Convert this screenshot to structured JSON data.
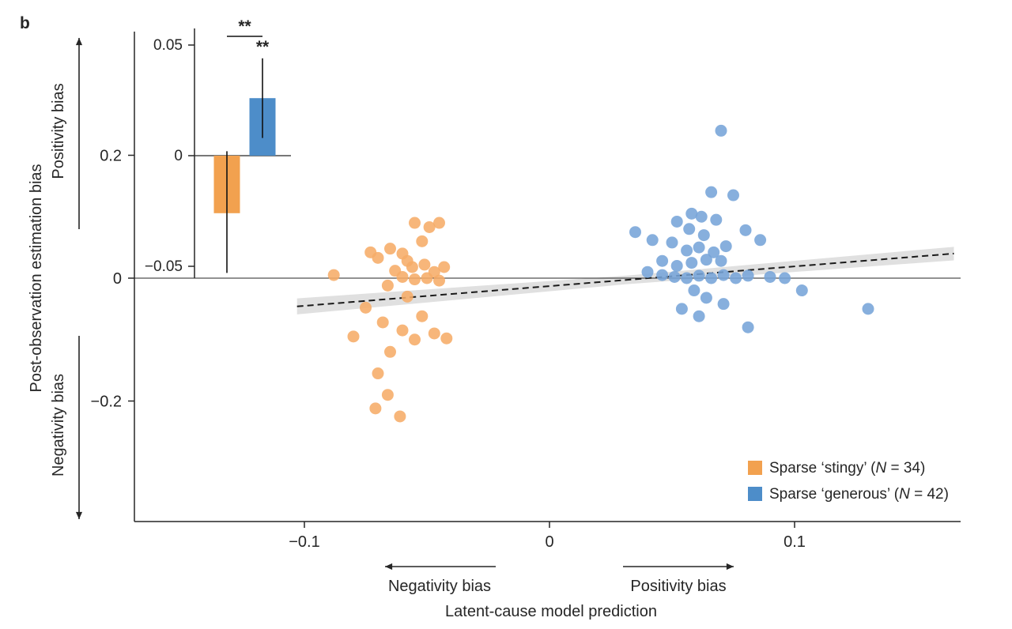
{
  "panel_label": "b",
  "colors": {
    "orange": "#F2A14F",
    "orange_point": "#F6AC68",
    "blue": "#4D8DC9",
    "blue_point": "#76A4D8",
    "axis": "#262626",
    "band": "#DBDBDB"
  },
  "axes": {
    "x_label": "Latent-cause model prediction",
    "y_label": "Post-observation estimation bias",
    "y_pos_label": "Positivity bias",
    "y_neg_label": "Negativity bias",
    "x_neg_label": "Negativity bias",
    "x_pos_label": "Positivity bias"
  },
  "chart_data": {
    "type": "scatter",
    "xlim": [
      -0.169,
      0.168
    ],
    "ylim": [
      -0.4,
      0.4
    ],
    "grid": false,
    "zero_line": true,
    "xticks": [
      {
        "v": -0.1,
        "label": "−0.1"
      },
      {
        "v": 0,
        "label": "0"
      },
      {
        "v": 0.1,
        "label": "0.1"
      }
    ],
    "yticks": [
      {
        "v": 0.2,
        "label": "0.2"
      },
      {
        "v": 0,
        "label": "0"
      },
      {
        "v": -0.2,
        "label": "−0.2"
      }
    ],
    "regression": {
      "style": "dashed",
      "x": [
        -0.103,
        0.165
      ],
      "y": [
        -0.046,
        0.04
      ]
    },
    "band": [
      {
        "x": -0.103,
        "lo": -0.059,
        "hi": -0.033
      },
      {
        "x": 0.031,
        "lo": -0.01,
        "hi": 0.004
      },
      {
        "x": 0.165,
        "lo": 0.029,
        "hi": 0.051
      }
    ],
    "series": [
      {
        "key": "stingy",
        "name": "Sparse ‘stingy’",
        "n": 34,
        "color_key": "orange",
        "points": [
          [
            -0.088,
            0.005
          ],
          [
            -0.073,
            0.042
          ],
          [
            -0.07,
            0.033
          ],
          [
            -0.065,
            0.048
          ],
          [
            -0.06,
            0.04
          ],
          [
            -0.055,
            0.09
          ],
          [
            -0.049,
            0.083
          ],
          [
            -0.045,
            0.09
          ],
          [
            -0.052,
            0.06
          ],
          [
            -0.058,
            0.028
          ],
          [
            -0.063,
            0.012
          ],
          [
            -0.056,
            0.018
          ],
          [
            -0.051,
            0.022
          ],
          [
            -0.047,
            0.01
          ],
          [
            -0.043,
            0.018
          ],
          [
            -0.06,
            0.002
          ],
          [
            -0.055,
            -0.002
          ],
          [
            -0.05,
            0.0
          ],
          [
            -0.045,
            -0.004
          ],
          [
            -0.066,
            -0.012
          ],
          [
            -0.058,
            -0.03
          ],
          [
            -0.075,
            -0.048
          ],
          [
            -0.068,
            -0.072
          ],
          [
            -0.06,
            -0.085
          ],
          [
            -0.052,
            -0.062
          ],
          [
            -0.047,
            -0.09
          ],
          [
            -0.055,
            -0.1
          ],
          [
            -0.08,
            -0.095
          ],
          [
            -0.042,
            -0.098
          ],
          [
            -0.065,
            -0.12
          ],
          [
            -0.07,
            -0.155
          ],
          [
            -0.066,
            -0.19
          ],
          [
            -0.071,
            -0.212
          ],
          [
            -0.061,
            -0.225
          ]
        ]
      },
      {
        "key": "generous",
        "name": "Sparse ‘generous’",
        "n": 42,
        "color_key": "blue",
        "points": [
          [
            0.07,
            0.24
          ],
          [
            0.066,
            0.14
          ],
          [
            0.075,
            0.135
          ],
          [
            0.058,
            0.105
          ],
          [
            0.062,
            0.1
          ],
          [
            0.052,
            0.092
          ],
          [
            0.068,
            0.095
          ],
          [
            0.035,
            0.075
          ],
          [
            0.042,
            0.062
          ],
          [
            0.08,
            0.078
          ],
          [
            0.086,
            0.062
          ],
          [
            0.057,
            0.08
          ],
          [
            0.063,
            0.07
          ],
          [
            0.05,
            0.058
          ],
          [
            0.056,
            0.045
          ],
          [
            0.061,
            0.05
          ],
          [
            0.067,
            0.042
          ],
          [
            0.072,
            0.052
          ],
          [
            0.046,
            0.028
          ],
          [
            0.052,
            0.02
          ],
          [
            0.058,
            0.025
          ],
          [
            0.064,
            0.03
          ],
          [
            0.07,
            0.028
          ],
          [
            0.04,
            0.01
          ],
          [
            0.046,
            0.005
          ],
          [
            0.051,
            0.002
          ],
          [
            0.056,
            0.0
          ],
          [
            0.061,
            0.004
          ],
          [
            0.066,
            0.0
          ],
          [
            0.071,
            0.005
          ],
          [
            0.076,
            0.0
          ],
          [
            0.081,
            0.004
          ],
          [
            0.09,
            0.002
          ],
          [
            0.096,
            0.0
          ],
          [
            0.059,
            -0.02
          ],
          [
            0.064,
            -0.032
          ],
          [
            0.054,
            -0.05
          ],
          [
            0.061,
            -0.062
          ],
          [
            0.071,
            -0.042
          ],
          [
            0.081,
            -0.08
          ],
          [
            0.103,
            -0.02
          ],
          [
            0.13,
            -0.05
          ]
        ]
      }
    ],
    "inset": {
      "type": "bar",
      "ylim": [
        -0.055,
        0.058
      ],
      "yticks": [
        {
          "v": 0.05,
          "label": "0.05"
        },
        {
          "v": 0,
          "label": "0"
        },
        {
          "v": -0.05,
          "label": "−0.05"
        }
      ],
      "bars": [
        {
          "name": "stingy",
          "color_key": "orange",
          "value": -0.026,
          "ci": [
            -0.053,
            0.002
          ]
        },
        {
          "name": "generous",
          "color_key": "blue",
          "value": 0.026,
          "ci": [
            0.008,
            0.044
          ],
          "sig": "**"
        }
      ],
      "pair_sig": "**"
    }
  },
  "legend": {
    "items": [
      {
        "pre": "Sparse ‘stingy’ (",
        "n_symbol": "N",
        "post": " = 34)",
        "color_key": "orange"
      },
      {
        "pre": "Sparse ‘generous’ (",
        "n_symbol": "N",
        "post": " = 42)",
        "color_key": "blue"
      }
    ]
  }
}
